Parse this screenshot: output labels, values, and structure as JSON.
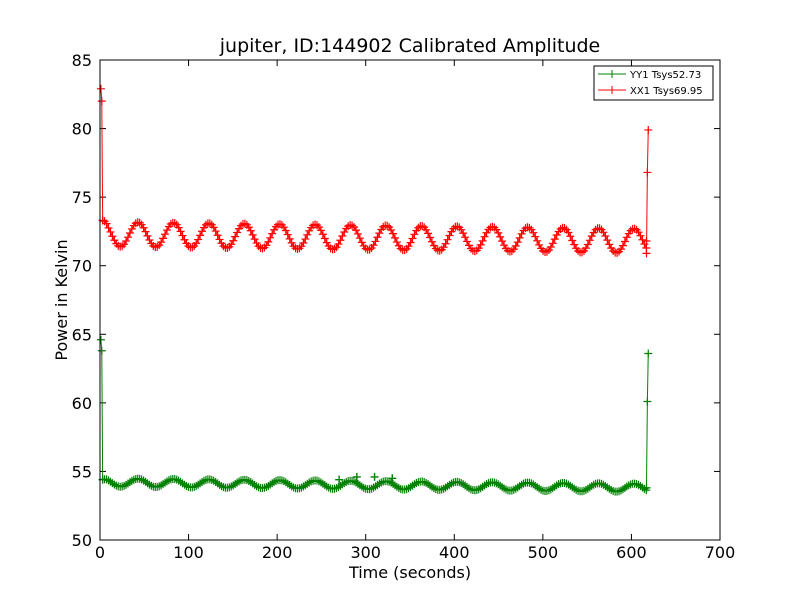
{
  "chart_data": {
    "type": "line",
    "title": "jupiter, ID:144902 Calibrated Amplitude",
    "xlabel": "Time (seconds)",
    "ylabel": "Power in Kelvin",
    "xlim": [
      0,
      700
    ],
    "ylim": [
      50,
      85
    ],
    "xticks": [
      0,
      100,
      200,
      300,
      400,
      500,
      600,
      700
    ],
    "yticks": [
      50,
      55,
      60,
      65,
      70,
      75,
      80,
      85
    ],
    "xtick_labels": [
      "0",
      "100",
      "200",
      "300",
      "400",
      "500",
      "600",
      "700"
    ],
    "ytick_labels": [
      "50",
      "55",
      "60",
      "65",
      "70",
      "75",
      "80",
      "85"
    ],
    "grid": false,
    "legend_position": "top-right",
    "marker": "+",
    "series": [
      {
        "name": "YY1 Tsys52.73",
        "color": "#008000",
        "segments": [
          {
            "x": [
              1,
              2,
              3
            ],
            "y": [
              64.6,
              63.8,
              54.4
            ]
          },
          {
            "x": [
              3,
              40,
              617
            ],
            "y": [
              54.4,
              54.2,
              53.8
            ],
            "wiggle": {
              "amplitude": 0.3,
              "period": 40
            }
          },
          {
            "x": [
              617,
              618,
              619
            ],
            "y": [
              53.8,
              60.1,
              63.6
            ]
          }
        ],
        "spikes": [
          {
            "x": 270,
            "y": 54.4
          },
          {
            "x": 290,
            "y": 54.6
          },
          {
            "x": 310,
            "y": 54.6
          },
          {
            "x": 330,
            "y": 54.5
          }
        ]
      },
      {
        "name": "XX1 Tsys69.95",
        "color": "#ff0000",
        "segments": [
          {
            "x": [
              1,
              2,
              3
            ],
            "y": [
              82.9,
              82.0,
              73.3
            ]
          },
          {
            "x": [
              3,
              40,
              617
            ],
            "y": [
              73.3,
              72.3,
              71.8
            ],
            "wiggle": {
              "amplitude": 0.9,
              "period": 40
            }
          },
          {
            "x": [
              617,
              618,
              619
            ],
            "y": [
              70.9,
              76.8,
              79.9
            ]
          }
        ]
      }
    ]
  }
}
